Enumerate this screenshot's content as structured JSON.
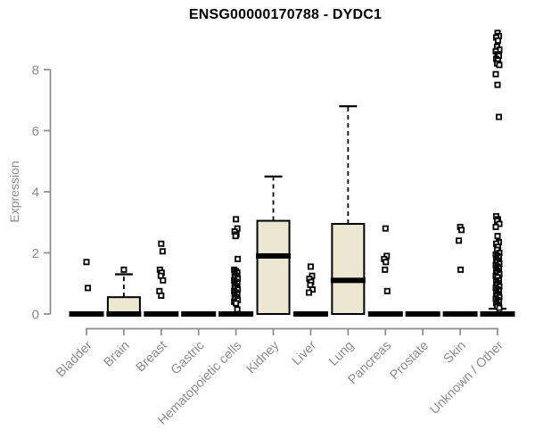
{
  "chart_data": {
    "type": "boxplot",
    "title": "ENSG00000170788 - DYDC1",
    "ylabel": "Expression",
    "xlabel": "",
    "yticks": [
      0,
      2,
      4,
      6,
      8
    ],
    "ylim": [
      0,
      9.3
    ],
    "grid": false,
    "legend": "none",
    "categories": [
      "Bladder",
      "Brain",
      "Breast",
      "Gastric",
      "Hematopoietic cells",
      "Kidney",
      "Liver",
      "Lung",
      "Pancreas",
      "Prostate",
      "Skin",
      "Unknown / Other"
    ],
    "boxes": [
      {
        "category": "Bladder",
        "q1": 0,
        "median": 0,
        "q3": 0,
        "whisker_high": 0,
        "outliers": [
          1.7,
          0.85
        ]
      },
      {
        "category": "Brain",
        "q1": 0,
        "median": 0,
        "q3": 0.55,
        "whisker_high": 1.3,
        "outliers": [
          1.45
        ]
      },
      {
        "category": "Breast",
        "q1": 0,
        "median": 0,
        "q3": 0,
        "whisker_high": 0,
        "outliers": [
          2.3,
          2.05,
          1.45,
          1.35,
          1.25,
          1.1,
          0.75,
          0.6
        ]
      },
      {
        "category": "Gastric",
        "q1": 0,
        "median": 0,
        "q3": 0,
        "whisker_high": 0,
        "outliers": []
      },
      {
        "category": "Hematopoietic cells",
        "q1": 0,
        "median": 0,
        "q3": 0,
        "whisker_high": 0,
        "outliers": [
          3.1,
          2.8,
          2.7,
          2.6,
          2.55,
          1.8,
          1.45,
          1.4,
          1.35,
          1.3,
          1.25,
          1.2,
          1.15,
          1.1,
          1.05,
          1.0,
          0.95,
          0.9,
          0.85,
          0.8,
          0.75,
          0.7,
          0.65,
          0.6,
          0.55,
          0.5,
          0.45,
          0.4,
          0.35,
          0.15
        ]
      },
      {
        "category": "Kidney",
        "q1": 0,
        "median": 1.9,
        "q3": 3.05,
        "whisker_high": 4.5,
        "outliers": []
      },
      {
        "category": "Liver",
        "q1": 0,
        "median": 0,
        "q3": 0,
        "whisker_high": 0,
        "outliers": [
          1.55,
          1.25,
          1.15,
          1.05,
          0.95,
          0.8,
          0.7
        ]
      },
      {
        "category": "Lung",
        "q1": 0,
        "median": 1.1,
        "q3": 2.95,
        "whisker_high": 6.8,
        "outliers": []
      },
      {
        "category": "Pancreas",
        "q1": 0,
        "median": 0,
        "q3": 0,
        "whisker_high": 0,
        "outliers": [
          2.8,
          1.9,
          1.8,
          1.7,
          1.45,
          0.75
        ]
      },
      {
        "category": "Prostate",
        "q1": 0,
        "median": 0,
        "q3": 0,
        "whisker_high": 0,
        "outliers": []
      },
      {
        "category": "Skin",
        "q1": 0,
        "median": 0,
        "q3": 0,
        "whisker_high": 0,
        "outliers": [
          2.85,
          2.75,
          2.4,
          1.45
        ]
      },
      {
        "category": "Unknown / Other",
        "q1": 0,
        "median": 0,
        "q3": 0,
        "whisker_high": 0.17,
        "outliers": [
          9.2,
          9.1,
          9.05,
          8.95,
          8.75,
          8.65,
          8.6,
          8.5,
          8.45,
          8.35,
          8.3,
          8.2,
          8.15,
          7.85,
          7.5,
          6.45,
          3.2,
          3.1,
          3.05,
          2.95,
          2.85,
          2.55,
          2.35,
          2.3,
          2.2,
          2.1,
          2.0,
          1.95,
          1.9,
          1.85,
          1.8,
          1.75,
          1.7,
          1.65,
          1.6,
          1.55,
          1.5,
          1.45,
          1.4,
          1.35,
          1.3,
          1.25,
          1.2,
          1.1,
          1.05,
          1.0,
          0.95,
          0.9,
          0.85,
          0.8,
          0.75,
          0.7,
          0.65,
          0.6,
          0.55,
          0.5,
          0.45,
          0.4,
          0.35,
          0.3,
          0.25,
          0.2
        ]
      }
    ],
    "colors": {
      "box_fill": "#ece7d0",
      "box_border": "#000000",
      "median": "#000000",
      "whisker": "#000000",
      "outlier": "#000000",
      "axis": "#8c8c8c",
      "tick_text": "#8c8c8c",
      "title_text": "#000000",
      "background": "#ffffff"
    }
  }
}
